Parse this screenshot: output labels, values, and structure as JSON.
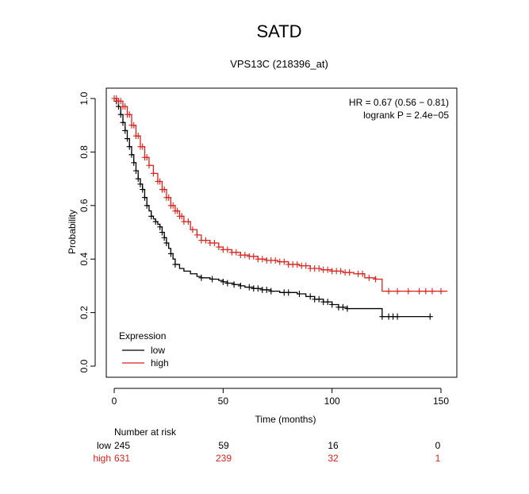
{
  "title": "SATD",
  "subtitle": "VPS13C (218396_at)",
  "stats": {
    "hr": "HR = 0.67 (0.56 − 0.81)",
    "logrank": "logrank P = 2.4e−05"
  },
  "legend": {
    "title": "Expression",
    "items": [
      {
        "label": "low",
        "color": "#000000"
      },
      {
        "label": "high",
        "color": "#e0201b"
      }
    ]
  },
  "risk_table": {
    "title": "Number at risk",
    "rows": [
      {
        "label": "low",
        "color": "#000000",
        "values": [
          "245",
          "59",
          "16",
          "0"
        ]
      },
      {
        "label": "high",
        "color": "#e0201b",
        "values": [
          "631",
          "239",
          "32",
          "1"
        ]
      }
    ]
  },
  "chart_data": {
    "type": "line",
    "subtype": "kaplan-meier step",
    "title": "SATD",
    "subtitle": "VPS13C (218396_at)",
    "xlabel": "Time (months)",
    "ylabel": "Probability",
    "xlim": [
      0,
      155
    ],
    "ylim": [
      0,
      1
    ],
    "xticks": [
      0,
      50,
      100,
      150
    ],
    "yticks": [
      0.0,
      0.2,
      0.4,
      0.6,
      0.8,
      1.0
    ],
    "xtick_labels": [
      "0",
      "50",
      "100",
      "150"
    ],
    "ytick_labels": [
      "0.0",
      "0.2",
      "0.4",
      "0.6",
      "0.8",
      "1.0"
    ],
    "grid": false,
    "legend_position": "bottom-left",
    "series": [
      {
        "name": "low",
        "color": "#000000",
        "x": [
          0,
          1,
          2,
          3,
          4,
          5,
          6,
          7,
          8,
          9,
          10,
          11,
          12,
          13,
          14,
          15,
          16,
          17,
          18,
          19,
          20,
          21,
          22,
          23,
          24,
          25,
          26,
          27,
          28,
          30,
          32,
          35,
          38,
          40,
          44,
          48,
          50,
          52,
          55,
          58,
          60,
          64,
          68,
          72,
          76,
          80,
          84,
          88,
          92,
          96,
          100,
          103,
          107,
          112,
          118,
          123,
          124,
          130,
          145
        ],
        "y": [
          1.0,
          0.99,
          0.97,
          0.94,
          0.91,
          0.88,
          0.85,
          0.82,
          0.79,
          0.76,
          0.73,
          0.7,
          0.68,
          0.66,
          0.63,
          0.6,
          0.58,
          0.56,
          0.55,
          0.54,
          0.53,
          0.52,
          0.5,
          0.48,
          0.46,
          0.44,
          0.42,
          0.4,
          0.38,
          0.365,
          0.355,
          0.345,
          0.335,
          0.33,
          0.325,
          0.32,
          0.315,
          0.31,
          0.305,
          0.3,
          0.295,
          0.29,
          0.285,
          0.28,
          0.275,
          0.275,
          0.27,
          0.26,
          0.25,
          0.24,
          0.23,
          0.22,
          0.215,
          0.215,
          0.215,
          0.185,
          0.185,
          0.185,
          0.185
        ],
        "censor_x": [
          1,
          2,
          3,
          4,
          5,
          6,
          7,
          8,
          9,
          10,
          11,
          12,
          13,
          14,
          15,
          17,
          19,
          21,
          22,
          23,
          24,
          26,
          28,
          40,
          45,
          50,
          52,
          55,
          58,
          62,
          64,
          66,
          68,
          70,
          72,
          78,
          80,
          85,
          90,
          92,
          94,
          96,
          98,
          100,
          103,
          105,
          107,
          123,
          126,
          128,
          130,
          145
        ]
      },
      {
        "name": "high",
        "color": "#e0201b",
        "x": [
          0,
          2,
          4,
          6,
          8,
          10,
          12,
          14,
          16,
          18,
          20,
          22,
          24,
          26,
          28,
          30,
          32,
          35,
          38,
          40,
          44,
          48,
          50,
          54,
          58,
          62,
          66,
          70,
          75,
          80,
          85,
          90,
          95,
          100,
          105,
          110,
          115,
          120,
          123,
          124,
          130,
          140,
          150,
          153
        ],
        "y": [
          1.0,
          0.99,
          0.97,
          0.94,
          0.9,
          0.86,
          0.82,
          0.78,
          0.75,
          0.72,
          0.69,
          0.66,
          0.63,
          0.6,
          0.58,
          0.56,
          0.54,
          0.51,
          0.49,
          0.47,
          0.46,
          0.445,
          0.435,
          0.425,
          0.415,
          0.41,
          0.4,
          0.395,
          0.39,
          0.38,
          0.375,
          0.365,
          0.36,
          0.355,
          0.35,
          0.345,
          0.33,
          0.325,
          0.28,
          0.28,
          0.28,
          0.28,
          0.28,
          0.28
        ],
        "censor_x": [
          0,
          1,
          2,
          3,
          4,
          5,
          6,
          7,
          8,
          9,
          10,
          11,
          12,
          13,
          14,
          15,
          16,
          18,
          20,
          21,
          22,
          23,
          24,
          25,
          26,
          27,
          28,
          29,
          30,
          31,
          32,
          34,
          36,
          38,
          40,
          42,
          44,
          46,
          48,
          50,
          52,
          54,
          56,
          58,
          60,
          62,
          64,
          66,
          68,
          70,
          72,
          74,
          76,
          78,
          80,
          82,
          84,
          86,
          88,
          90,
          92,
          94,
          96,
          98,
          100,
          102,
          104,
          106,
          108,
          112,
          114,
          117,
          120,
          126,
          130,
          135,
          140,
          143,
          146,
          150
        ]
      }
    ]
  }
}
